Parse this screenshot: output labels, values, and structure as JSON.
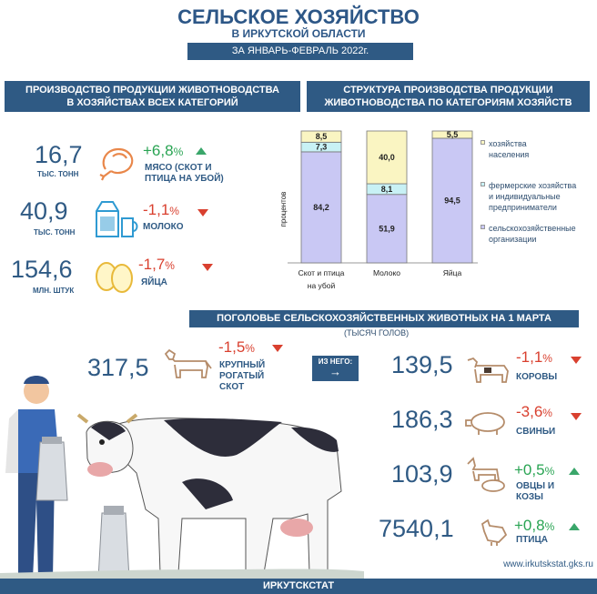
{
  "header": {
    "title": "СЕЛЬСКОЕ ХОЗЯЙСТВО",
    "subtitle": "В ИРКУТСКОЙ ОБЛАСТИ",
    "period": "ЗА ЯНВАРЬ-ФЕВРАЛЬ 2022г."
  },
  "production": {
    "heading_line1": "ПРОИЗВОДСТВО ПРОДУКЦИИ ЖИВОТНОВОДСТВА",
    "heading_line2": "В ХОЗЯЙСТВАХ ВСЕХ КАТЕГОРИЙ",
    "items": [
      {
        "value": "16,7",
        "unit": "ТЫС. ТОНН",
        "change": "+6,8",
        "pct": "%",
        "label_line1": "МЯСО (СКОТ И",
        "label_line2": "ПТИЦА НА УБОЙ)",
        "icon": "meat-icon"
      },
      {
        "value": "40,9",
        "unit": "ТЫС. ТОНН",
        "change": "-1,1",
        "pct": "%",
        "label_line1": "МОЛОКО",
        "icon": "milk-icon"
      },
      {
        "value": "154,6",
        "unit": "МЛН. ШТУК",
        "change": "-1,7",
        "pct": "%",
        "label_line1": "ЯЙЦА",
        "icon": "eggs-icon"
      }
    ]
  },
  "structure": {
    "heading_line1": "СТРУКТУРА ПРОИЗВОДСТВА ПРОДУКЦИИ",
    "heading_line2": "ЖИВОТНОВОДСТВА ПО КАТЕГОРИЯМ ХОЗЯЙСТВ",
    "legend": [
      {
        "line1": "хозяйства",
        "line2": "населения",
        "line3": ""
      },
      {
        "line1": "фермерские хозяйства",
        "line2": "и индивидуальные",
        "line3": "предприниматели"
      },
      {
        "line1": "сельскохозяйственные",
        "line2": "организации",
        "line3": ""
      }
    ]
  },
  "chart_data": {
    "type": "bar",
    "stacked": true,
    "ylabel": "процентов",
    "categories": [
      "Скот и птица на убой",
      "Молоко",
      "Яйца"
    ],
    "series": [
      {
        "name": "сельскохозяйственные организации",
        "values": [
          84.2,
          51.9,
          94.5
        ],
        "color": "#c9c8f4"
      },
      {
        "name": "фермерские хозяйства и индивидуальные предприниматели",
        "values": [
          7.3,
          8.1,
          0
        ],
        "color": "#c8f1f5"
      },
      {
        "name": "хозяйства населения",
        "values": [
          8.5,
          40.0,
          5.5
        ],
        "color": "#faf5c2"
      }
    ],
    "labels": [
      [
        "84,2",
        "51,9",
        "94,5"
      ],
      [
        "7,3",
        "8,1",
        ""
      ],
      [
        "8,5",
        "40,0",
        "5,5"
      ]
    ],
    "cat_line1": [
      "Скот и птица",
      "Молоко",
      "Яйца"
    ],
    "cat_line2": [
      "на убой",
      "",
      ""
    ]
  },
  "livestock": {
    "heading": "ПОГОЛОВЬЕ СЕЛЬСКОХОЗЯЙСТВЕННЫХ ЖИВОТНЫХ НА 1 МАРТА",
    "units": "(ТЫСЯЧ ГОЛОВ)",
    "main": {
      "value": "317,5",
      "change": "-1,5",
      "pct": "%",
      "label_line1": "КРУПНЫЙ",
      "label_line2": "РОГАТЫЙ",
      "label_line3": "СКОТ"
    },
    "of_which": "ИЗ НЕГО:",
    "items": [
      {
        "value": "139,5",
        "change": "-1,1",
        "pct": "%",
        "label_line1": "КОРОВЫ",
        "label_line2": ""
      },
      {
        "value": "186,3",
        "change": "-3,6",
        "pct": "%",
        "label_line1": "СВИНЬИ",
        "label_line2": ""
      },
      {
        "value": "103,9",
        "change": "+0,5",
        "pct": "%",
        "label_line1": "ОВЦЫ И",
        "label_line2": "КОЗЫ"
      },
      {
        "value": "7540,1",
        "change": "+0,8",
        "pct": "%",
        "label_line1": "ПТИЦА",
        "label_line2": ""
      }
    ]
  },
  "footer": {
    "org": "ИРКУТСКСТАТ",
    "url": "www.irkutskstat.gks.ru"
  },
  "colors": {
    "brand": "#2f5a84",
    "up": "#29a453",
    "down": "#d9402f",
    "icon": "#e9874a"
  }
}
